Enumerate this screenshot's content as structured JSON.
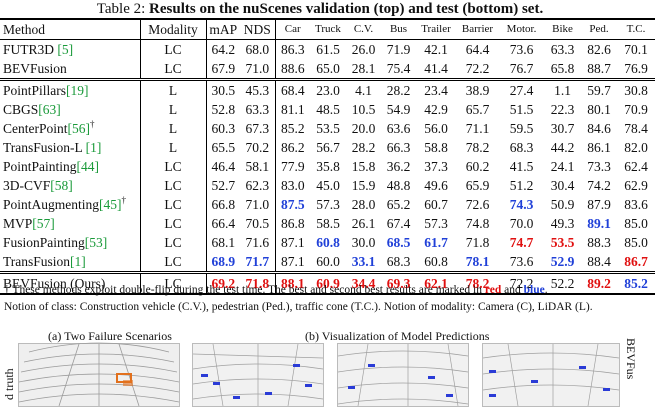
{
  "caption": {
    "prefix": "Table 2: ",
    "title": "Results on the nuScenes validation (top) and test (bottom) set."
  },
  "table": {
    "headers": {
      "method": "Method",
      "modality": "Modality",
      "map": "mAP",
      "nds": "NDS",
      "classes": [
        "Car",
        "Truck",
        "C.V.",
        "Bus",
        "Trailer",
        "Barrier",
        "Motor.",
        "Bike",
        "Ped.",
        "T.C."
      ]
    },
    "validation_rows": [
      {
        "name": "FUTR3D ",
        "ref": "[5]",
        "sup": "",
        "modality": "LC",
        "map": "64.2",
        "nds": "68.0",
        "classes": [
          "86.3",
          "61.5",
          "26.0",
          "71.9",
          "42.1",
          "64.4",
          "73.6",
          "63.3",
          "82.6",
          "70.1"
        ]
      },
      {
        "name": "BEVFusion",
        "ref": "",
        "sup": "",
        "modality": "LC",
        "map": "67.9",
        "nds": "71.0",
        "classes": [
          "88.6",
          "65.0",
          "28.1",
          "75.4",
          "41.4",
          "72.2",
          "76.7",
          "65.8",
          "88.7",
          "76.9"
        ]
      }
    ],
    "test_rows": [
      {
        "name": "PointPillars",
        "ref": "[19]",
        "sup": "",
        "modality": "L",
        "map": "30.5",
        "nds": "45.3",
        "classes": [
          "68.4",
          "23.0",
          "4.1",
          "28.2",
          "23.4",
          "38.9",
          "27.4",
          "1.1",
          "59.7",
          "30.8"
        ]
      },
      {
        "name": "CBGS",
        "ref": "[63]",
        "sup": "",
        "modality": "L",
        "map": "52.8",
        "nds": "63.3",
        "classes": [
          "81.1",
          "48.5",
          "10.5",
          "54.9",
          "42.9",
          "65.7",
          "51.5",
          "22.3",
          "80.1",
          "70.9"
        ]
      },
      {
        "name": "CenterPoint",
        "ref": "[56]",
        "sup": "†",
        "modality": "L",
        "map": "60.3",
        "nds": "67.3",
        "classes": [
          "85.2",
          "53.5",
          "20.0",
          "63.6",
          "56.0",
          "71.1",
          "59.5",
          "30.7",
          "84.6",
          "78.4"
        ]
      },
      {
        "name": "TransFusion-L ",
        "ref": "[1]",
        "sup": "",
        "modality": "L",
        "map": "65.5",
        "nds": "70.2",
        "classes": [
          "86.2",
          "56.7",
          "28.2",
          "66.3",
          "58.8",
          "78.2",
          "68.3",
          "44.2",
          "86.1",
          "82.0"
        ]
      },
      {
        "name": "PointPainting",
        "ref": "[44]",
        "sup": "",
        "modality": "LC",
        "map": "46.4",
        "nds": "58.1",
        "classes": [
          "77.9",
          "35.8",
          "15.8",
          "36.2",
          "37.3",
          "60.2",
          "41.5",
          "24.1",
          "73.3",
          "62.4"
        ]
      },
      {
        "name": "3D-CVF",
        "ref": "[58]",
        "sup": "",
        "modality": "LC",
        "map": "52.7",
        "nds": "62.3",
        "classes": [
          "83.0",
          "45.0",
          "15.9",
          "48.8",
          "49.6",
          "65.9",
          "51.2",
          "30.4",
          "74.2",
          "62.9"
        ]
      },
      {
        "name": "PointAugmenting",
        "ref": "[45]",
        "sup": "†",
        "modality": "LC",
        "map": "66.8",
        "nds": "71.0",
        "classes": [
          "87.5",
          "57.3",
          "28.0",
          "65.2",
          "60.7",
          "72.6",
          "74.3",
          "50.9",
          "87.9",
          "83.6"
        ]
      },
      {
        "name": "MVP",
        "ref": "[57]",
        "sup": "",
        "modality": "LC",
        "map": "66.4",
        "nds": "70.5",
        "classes": [
          "86.8",
          "58.5",
          "26.1",
          "67.4",
          "57.3",
          "74.8",
          "70.0",
          "49.3",
          "89.1",
          "85.0"
        ]
      },
      {
        "name": "FusionPainting",
        "ref": "[53]",
        "sup": "",
        "modality": "LC",
        "map": "68.1",
        "nds": "71.6",
        "classes": [
          "87.1",
          "60.8",
          "30.0",
          "68.5",
          "61.7",
          "71.8",
          "74.7",
          "53.5",
          "88.3",
          "85.0"
        ]
      },
      {
        "name": "TransFusion",
        "ref": "[1]",
        "sup": "",
        "modality": "LC",
        "map": "68.9",
        "nds": "71.7",
        "classes": [
          "87.1",
          "60.0",
          "33.1",
          "68.3",
          "60.8",
          "78.1",
          "73.6",
          "52.9",
          "88.4",
          "86.7"
        ]
      }
    ],
    "ours_row": {
      "name": "BEVFusion (Ours)",
      "ref": "",
      "sup": "",
      "modality": "LC",
      "map": "69.2",
      "nds": "71.8",
      "classes": [
        "88.1",
        "60.9",
        "34.4",
        "69.3",
        "62.1",
        "78.2",
        "72.2",
        "52.2",
        "89.2",
        "85.2"
      ]
    },
    "highlights": {
      "test_rows": {
        "6": {
          "c0": "second",
          "c6": "second"
        },
        "7": {
          "c8": "second"
        },
        "8": {
          "c1": "second",
          "c3": "second",
          "c4": "second",
          "c6": "best",
          "c7": "best"
        },
        "9": {
          "map": "second",
          "nds": "second",
          "c2": "second",
          "c5": "second",
          "c7": "second",
          "c9": "best"
        }
      },
      "ours_row": {
        "map": "best",
        "nds": "best",
        "c0": "best",
        "c1": "best",
        "c2": "best",
        "c3": "best",
        "c4": "best",
        "c5": "best",
        "c8": "best",
        "c9": "second"
      }
    }
  },
  "footnote": {
    "line1_pre": "† These methods exploit double-flip during the test time. The best and second best results are marked in ",
    "red_word": "red",
    "and_word": " and ",
    "blue_word": "blue",
    "line1_post": ".",
    "line2": "Notion of class: Construction vehicle (C.V.), pedestrian (Ped.), traffic cone (T.C.). Notion of modality: Camera (C), LiDAR (L)."
  },
  "figure": {
    "panel_a_title": "(a) Two Failure Scenarios",
    "panel_b_title": "(b) Visualization of Model Predictions",
    "left_vertical_label": "d truth",
    "right_vertical_label": "BEVFus",
    "colors": {
      "box_blue": "#2a3bd6",
      "box_orange": "#e2701c"
    }
  }
}
